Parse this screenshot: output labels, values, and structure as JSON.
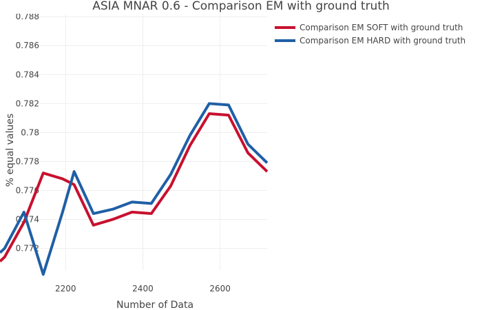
{
  "chart_data": {
    "type": "line",
    "title": "ASIA MNAR 0.6 - Comparison EM with ground truth",
    "xlabel": "Number of Data",
    "ylabel": "% equal values",
    "xlim": [
      2030,
      2722
    ],
    "ylim": [
      0.7705,
      0.7882
    ],
    "x_ticks": [
      2200,
      2400,
      2600
    ],
    "x_tick_labels": [
      "2200",
      "2400",
      "2600"
    ],
    "y_ticks": [
      0.772,
      0.774,
      0.776,
      0.778,
      0.78,
      0.782,
      0.784,
      0.786,
      0.788
    ],
    "y_tick_labels": [
      "0.772",
      "0.774",
      "0.776",
      "0.778",
      "0.78",
      "0.782",
      "0.784",
      "0.786",
      "0.788"
    ],
    "grid": true,
    "legend_position": "top-right",
    "series": [
      {
        "name": "Comparison EM SOFT with ground truth",
        "color": "#c8102e",
        "x": [
          2030,
          2042,
          2092,
          2142,
          2192,
          2222,
          2272,
          2322,
          2372,
          2422,
          2472,
          2522,
          2572,
          2622,
          2672,
          2722
        ],
        "y": [
          0.7711,
          0.7714,
          0.7738,
          0.7772,
          0.7768,
          0.7764,
          0.7736,
          0.774,
          0.7745,
          0.7744,
          0.7763,
          0.7791,
          0.7813,
          0.7812,
          0.7786,
          0.7773
        ]
      },
      {
        "name": "Comparison EM HARD with ground truth",
        "color": "#1f5fa6",
        "x": [
          2030,
          2042,
          2092,
          2142,
          2192,
          2222,
          2272,
          2322,
          2372,
          2422,
          2472,
          2522,
          2572,
          2622,
          2672,
          2722
        ],
        "y": [
          0.7717,
          0.772,
          0.7745,
          0.7702,
          0.7745,
          0.7773,
          0.7744,
          0.7747,
          0.7752,
          0.7751,
          0.7771,
          0.7798,
          0.782,
          0.7819,
          0.7792,
          0.7779
        ]
      }
    ]
  }
}
